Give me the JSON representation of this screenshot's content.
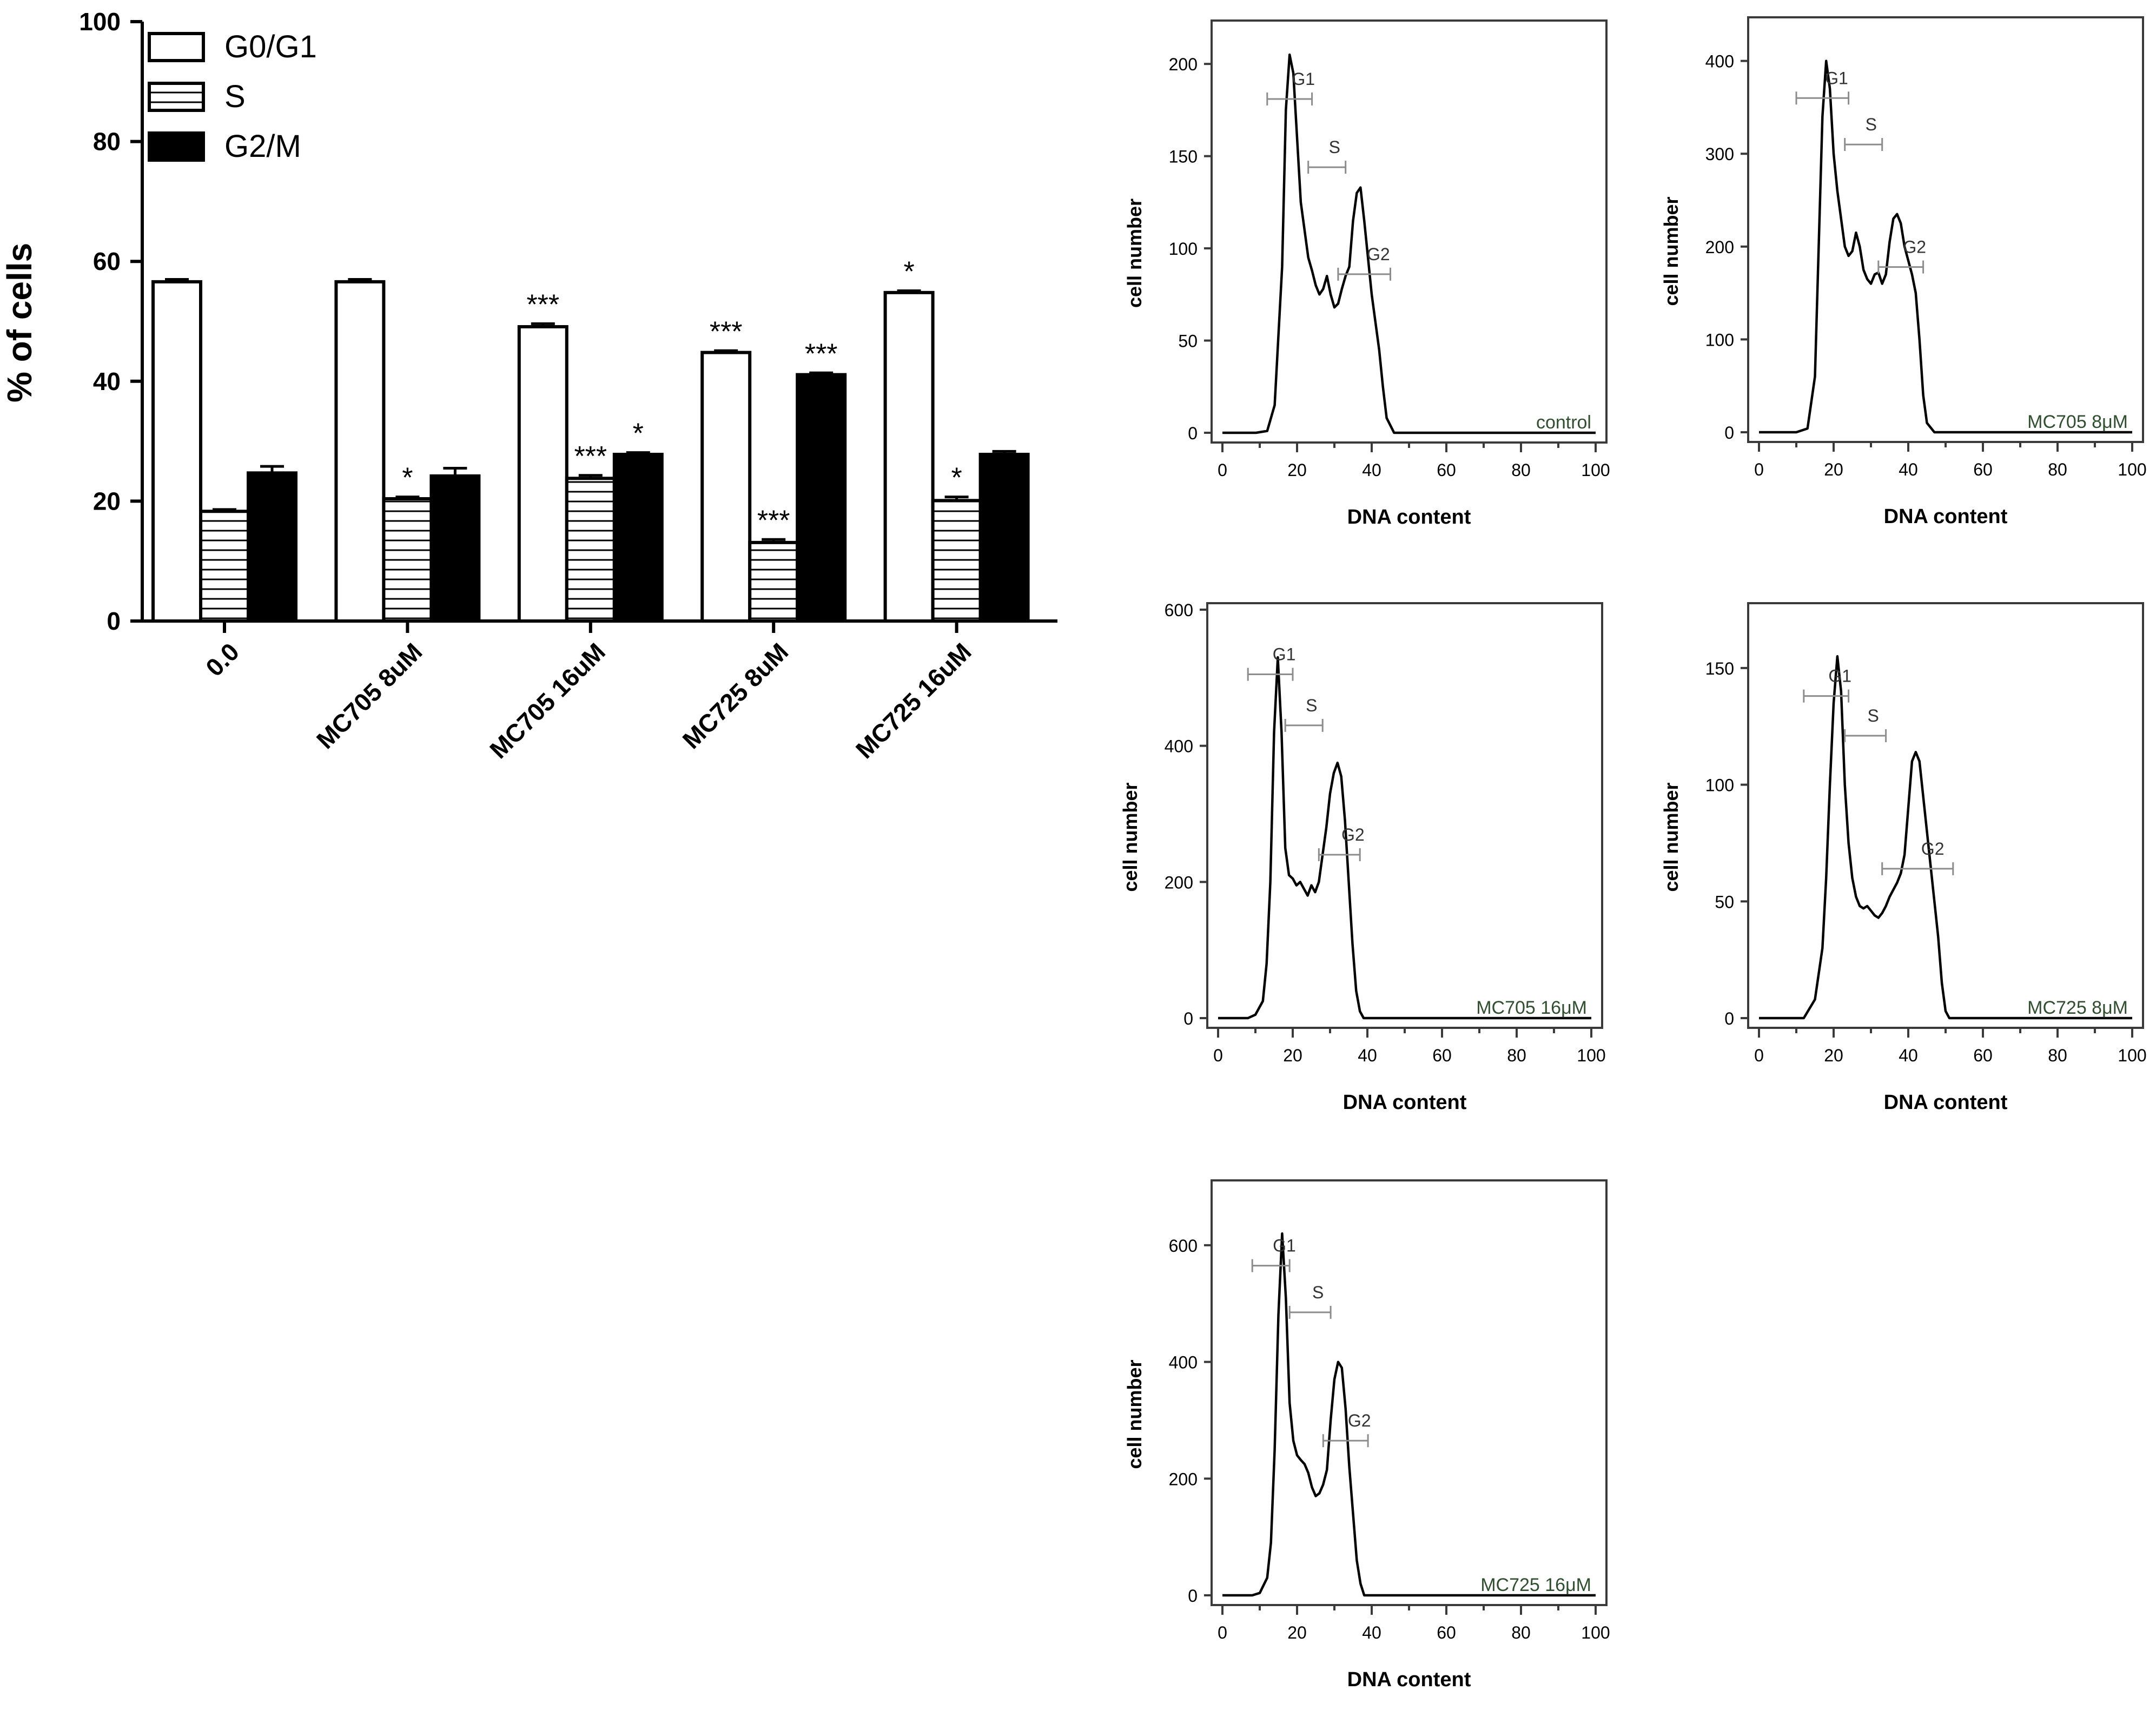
{
  "colors": {
    "ink": "#000000",
    "paper": "#ffffff",
    "gate": "#8c8c8c",
    "panel_frame": "#3a3a3a"
  },
  "chart_data": [
    {
      "type": "bar",
      "title": "",
      "ylabel": "% of cells",
      "xlabel": "",
      "ylim": [
        0,
        100
      ],
      "yticks": [
        "0",
        "20",
        "40",
        "60",
        "80",
        "100"
      ],
      "ytick_values": [
        0,
        20,
        40,
        60,
        80,
        100
      ],
      "legend_position": "top-left",
      "categories": [
        "0.0",
        "MC705 8uM",
        "MC705 16uM",
        "MC725 8uM",
        "MC725 16uM"
      ],
      "series": [
        {
          "name": "G0/G1",
          "fill": "open",
          "values": [
            56.6,
            56.6,
            49.1,
            44.8,
            54.8
          ],
          "errors": [
            0.4,
            0.4,
            0.5,
            0.3,
            0.3
          ],
          "annotations": [
            "",
            "",
            "***",
            "***",
            "*"
          ]
        },
        {
          "name": "S",
          "fill": "striped",
          "values": [
            18.3,
            20.4,
            23.8,
            13.1,
            20.1
          ],
          "errors": [
            0.3,
            0.3,
            0.5,
            0.5,
            0.6
          ],
          "annotations": [
            "",
            "*",
            "***",
            "***",
            "*"
          ]
        },
        {
          "name": "G2/M",
          "fill": "solid",
          "values": [
            24.7,
            24.2,
            27.8,
            41.1,
            27.8
          ],
          "errors": [
            1.1,
            1.3,
            0.3,
            0.3,
            0.5
          ],
          "annotations": [
            "",
            "",
            "*",
            "***",
            ""
          ]
        }
      ]
    },
    {
      "type": "line",
      "panel": "control",
      "label": "control",
      "xlabel": "DNA content",
      "ylabel": "cell number",
      "xlim": [
        0,
        100
      ],
      "ylim": [
        0,
        220
      ],
      "xticks": [
        "0",
        "20",
        "40",
        "60",
        "80",
        "100"
      ],
      "yticks": [
        "0",
        "50",
        "100",
        "150",
        "200"
      ],
      "ytick_values": [
        0,
        50,
        100,
        150,
        200
      ],
      "gates": [
        {
          "name": "G1",
          "x": [
            12,
            24
          ],
          "y": 181
        },
        {
          "name": "S",
          "x": [
            23,
            33
          ],
          "y": 144
        },
        {
          "name": "G2",
          "x": [
            31,
            45
          ],
          "y": 86
        }
      ],
      "x": [
        0,
        9,
        12,
        14,
        16,
        17,
        18,
        19,
        20,
        21,
        22,
        23,
        24,
        25,
        26,
        27,
        28,
        29,
        30,
        31,
        32,
        33,
        34,
        35,
        36,
        37,
        38,
        39,
        40,
        41,
        42,
        43,
        44,
        46,
        100
      ],
      "y": [
        0,
        0,
        1,
        15,
        90,
        175,
        205,
        195,
        160,
        125,
        110,
        95,
        88,
        80,
        75,
        78,
        85,
        75,
        68,
        70,
        78,
        85,
        90,
        115,
        130,
        133,
        115,
        95,
        75,
        60,
        45,
        25,
        8,
        0,
        0
      ]
    },
    {
      "type": "line",
      "panel": "MC705 8uM",
      "label": "MC705 8μM",
      "xlabel": "DNA content",
      "ylabel": "cell number",
      "xlim": [
        0,
        100
      ],
      "ylim": [
        0,
        440
      ],
      "xticks": [
        "0",
        "20",
        "40",
        "60",
        "80",
        "100"
      ],
      "yticks": [
        "0",
        "100",
        "200",
        "300",
        "400"
      ],
      "ytick_values": [
        0,
        100,
        200,
        300,
        400
      ],
      "gates": [
        {
          "name": "G1",
          "x": [
            10,
            24
          ],
          "y": 360
        },
        {
          "name": "S",
          "x": [
            23,
            33
          ],
          "y": 310
        },
        {
          "name": "G2",
          "x": [
            32,
            44
          ],
          "y": 178
        }
      ],
      "x": [
        0,
        10,
        13,
        15,
        16,
        17,
        18,
        19,
        20,
        21,
        22,
        23,
        24,
        25,
        26,
        27,
        28,
        29,
        30,
        31,
        32,
        33,
        34,
        35,
        36,
        37,
        38,
        39,
        40,
        41,
        42,
        43,
        44,
        45,
        47,
        100
      ],
      "y": [
        0,
        0,
        4,
        60,
        200,
        340,
        400,
        370,
        300,
        260,
        230,
        200,
        190,
        195,
        215,
        200,
        175,
        165,
        160,
        170,
        172,
        160,
        170,
        205,
        230,
        235,
        225,
        200,
        185,
        170,
        150,
        100,
        40,
        10,
        0,
        0
      ]
    },
    {
      "type": "line",
      "panel": "MC705 16uM",
      "label": "MC705 16μM",
      "xlabel": "DNA content",
      "ylabel": "cell number",
      "xlim": [
        0,
        100
      ],
      "ylim": [
        0,
        600
      ],
      "xticks": [
        "0",
        "20",
        "40",
        "60",
        "80",
        "100"
      ],
      "yticks": [
        "0",
        "200",
        "400",
        "600"
      ],
      "ytick_values": [
        0,
        200,
        400,
        600
      ],
      "gates": [
        {
          "name": "G1",
          "x": [
            8,
            20
          ],
          "y": 505
        },
        {
          "name": "S",
          "x": [
            18,
            28
          ],
          "y": 430
        },
        {
          "name": "G2",
          "x": [
            27,
            38
          ],
          "y": 240
        }
      ],
      "x": [
        0,
        8,
        10,
        12,
        13,
        14,
        15,
        16,
        17,
        18,
        19,
        20,
        21,
        22,
        23,
        24,
        25,
        26,
        27,
        28,
        29,
        30,
        31,
        32,
        33,
        34,
        35,
        36,
        37,
        38,
        39,
        100
      ],
      "y": [
        0,
        0,
        5,
        25,
        80,
        200,
        420,
        530,
        420,
        250,
        210,
        205,
        195,
        200,
        190,
        180,
        195,
        185,
        200,
        240,
        280,
        330,
        360,
        375,
        355,
        290,
        200,
        110,
        40,
        10,
        0,
        0
      ]
    },
    {
      "type": "line",
      "panel": "MC725 8uM",
      "label": "MC725 8μM",
      "xlabel": "DNA content",
      "ylabel": "cell number",
      "xlim": [
        0,
        100
      ],
      "ylim": [
        0,
        175
      ],
      "xticks": [
        "0",
        "20",
        "40",
        "60",
        "80",
        "100"
      ],
      "yticks": [
        "0",
        "50",
        "100",
        "150"
      ],
      "ytick_values": [
        0,
        50,
        100,
        150
      ],
      "gates": [
        {
          "name": "G1",
          "x": [
            12,
            24
          ],
          "y": 138
        },
        {
          "name": "S",
          "x": [
            23,
            34
          ],
          "y": 121
        },
        {
          "name": "G2",
          "x": [
            33,
            52
          ],
          "y": 64
        }
      ],
      "x": [
        0,
        12,
        15,
        17,
        18,
        19,
        20,
        21,
        22,
        23,
        24,
        25,
        26,
        27,
        28,
        29,
        30,
        31,
        32,
        33,
        34,
        35,
        36,
        37,
        38,
        39,
        40,
        41,
        42,
        43,
        44,
        45,
        46,
        47,
        48,
        49,
        50,
        51,
        100
      ],
      "y": [
        0,
        0,
        8,
        30,
        60,
        100,
        135,
        155,
        140,
        100,
        75,
        60,
        52,
        48,
        47,
        48,
        46,
        44,
        43,
        45,
        48,
        52,
        55,
        58,
        62,
        70,
        90,
        110,
        114,
        110,
        95,
        80,
        65,
        50,
        35,
        15,
        3,
        0,
        0
      ]
    },
    {
      "type": "line",
      "panel": "MC725 16uM",
      "label": "MC725 16μM",
      "xlabel": "DNA content",
      "ylabel": "cell number",
      "xlim": [
        0,
        100
      ],
      "ylim": [
        0,
        700
      ],
      "xticks": [
        "0",
        "20",
        "40",
        "60",
        "80",
        "100"
      ],
      "yticks": [
        "0",
        "200",
        "400",
        "600"
      ],
      "ytick_values": [
        0,
        200,
        400,
        600
      ],
      "gates": [
        {
          "name": "G1",
          "x": [
            8,
            18
          ],
          "y": 565
        },
        {
          "name": "S",
          "x": [
            18,
            29
          ],
          "y": 485
        },
        {
          "name": "G2",
          "x": [
            27,
            39
          ],
          "y": 265
        }
      ],
      "x": [
        0,
        8,
        10,
        12,
        13,
        14,
        15,
        16,
        17,
        18,
        19,
        20,
        21,
        22,
        23,
        24,
        25,
        26,
        27,
        28,
        29,
        30,
        31,
        32,
        33,
        34,
        35,
        36,
        37,
        38,
        100
      ],
      "y": [
        0,
        0,
        4,
        30,
        90,
        250,
        480,
        620,
        510,
        330,
        265,
        240,
        232,
        225,
        210,
        185,
        170,
        175,
        190,
        215,
        300,
        370,
        400,
        390,
        320,
        220,
        140,
        60,
        20,
        0,
        0
      ]
    }
  ]
}
